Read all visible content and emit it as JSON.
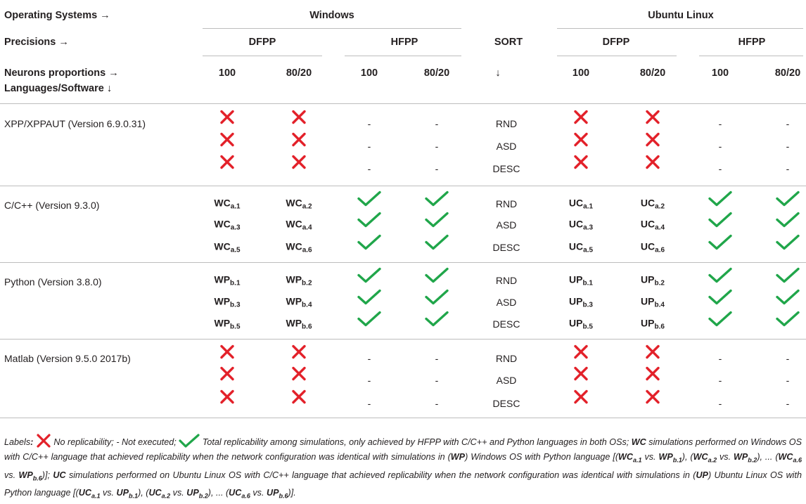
{
  "header": {
    "os_label": "Operating Systems →",
    "windows": "Windows",
    "ubuntu": "Ubuntu Linux",
    "precisions_label": "Precisions →",
    "dfpp": "DFPP",
    "hfpp": "HFPP",
    "sort": "SORT",
    "neurons_label": "Neurons proportions →",
    "languages_label": "Languages/Software ↓",
    "sort_arrow": "↓",
    "p100": "100",
    "p8020": "80/20"
  },
  "groups": [
    {
      "name": "XPP/XPPAUT (Version 6.9.0.31)",
      "type": "cross",
      "sorts": [
        "RND",
        "ASD",
        "DESC"
      ]
    },
    {
      "name": "C/C++ (Version 9.3.0)",
      "type": "code",
      "w_prefix": "WC",
      "u_prefix": "UC",
      "sub_left": [
        "a.1",
        "a.3",
        "a.5"
      ],
      "sub_right": [
        "a.2",
        "a.4",
        "a.6"
      ],
      "sorts": [
        "RND",
        "ASD",
        "DESC"
      ]
    },
    {
      "name": "Python (Version 3.8.0)",
      "type": "code",
      "w_prefix": "WP",
      "u_prefix": "UP",
      "sub_left": [
        "b.1",
        "b.3",
        "b.5"
      ],
      "sub_right": [
        "b.2",
        "b.4",
        "b.6"
      ],
      "sorts": [
        "RND",
        "ASD",
        "DESC"
      ]
    },
    {
      "name": "Matlab (Version 9.5.0 2017b)",
      "type": "cross",
      "sorts": [
        "RND",
        "ASD",
        "DESC"
      ]
    }
  ],
  "not_executed": "-",
  "colors": {
    "cross": "#e3212a",
    "check": "#20a64a",
    "rule": "#bdbdbd"
  },
  "icons": {
    "cross": "cross-icon",
    "check": "check-icon"
  },
  "legend": {
    "t1": "Labels",
    "t2": ":",
    "t3": " No replicability; - Not executed; ",
    "t4": " Total replicability among simulations, only achieved by HFPP with C/C++ and Python languages in both OSs; ",
    "t5": "WC",
    "t6": " simulations performed on Windows OS with C/C++ language that achieved replicability when the network configuration was identical with simulations in (",
    "t7": "WP",
    "t8": ") Windows OS with Python language [(",
    "t9": "WC",
    "t10": "a.1",
    "t11": " vs. ",
    "t12": "WP",
    "t13": "b.1",
    "t14": "), (",
    "t15": "WC",
    "t16": "a.2",
    "t17": " vs. ",
    "t18": "WP",
    "t19": "b.2",
    "t20": "), ... (",
    "t21": "WC",
    "t22": "a.6",
    "t23": " vs. ",
    "t24": "WP",
    "t25": "b.6",
    "t26": ")]; ",
    "t27": "UC",
    "t28": " simulations performed on Ubuntu Linux OS with C/C++ language that achieved replicability when the network configuration was identical with simulations in (",
    "t29": "UP",
    "t30": ") Ubuntu Linux OS with Python language [(",
    "t31": "UC",
    "t32": "a.1",
    "t33": " vs. ",
    "t34": "UP",
    "t35": "b.1",
    "t36": "), (",
    "t37": "UC",
    "t38": "a.2",
    "t39": " vs. ",
    "t40": "UP",
    "t41": "b.2",
    "t42": "), ... (",
    "t43": "UC",
    "t44": "a.6",
    "t45": " vs. ",
    "t46": "UP",
    "t47": "b.6",
    "t48": ")]."
  }
}
